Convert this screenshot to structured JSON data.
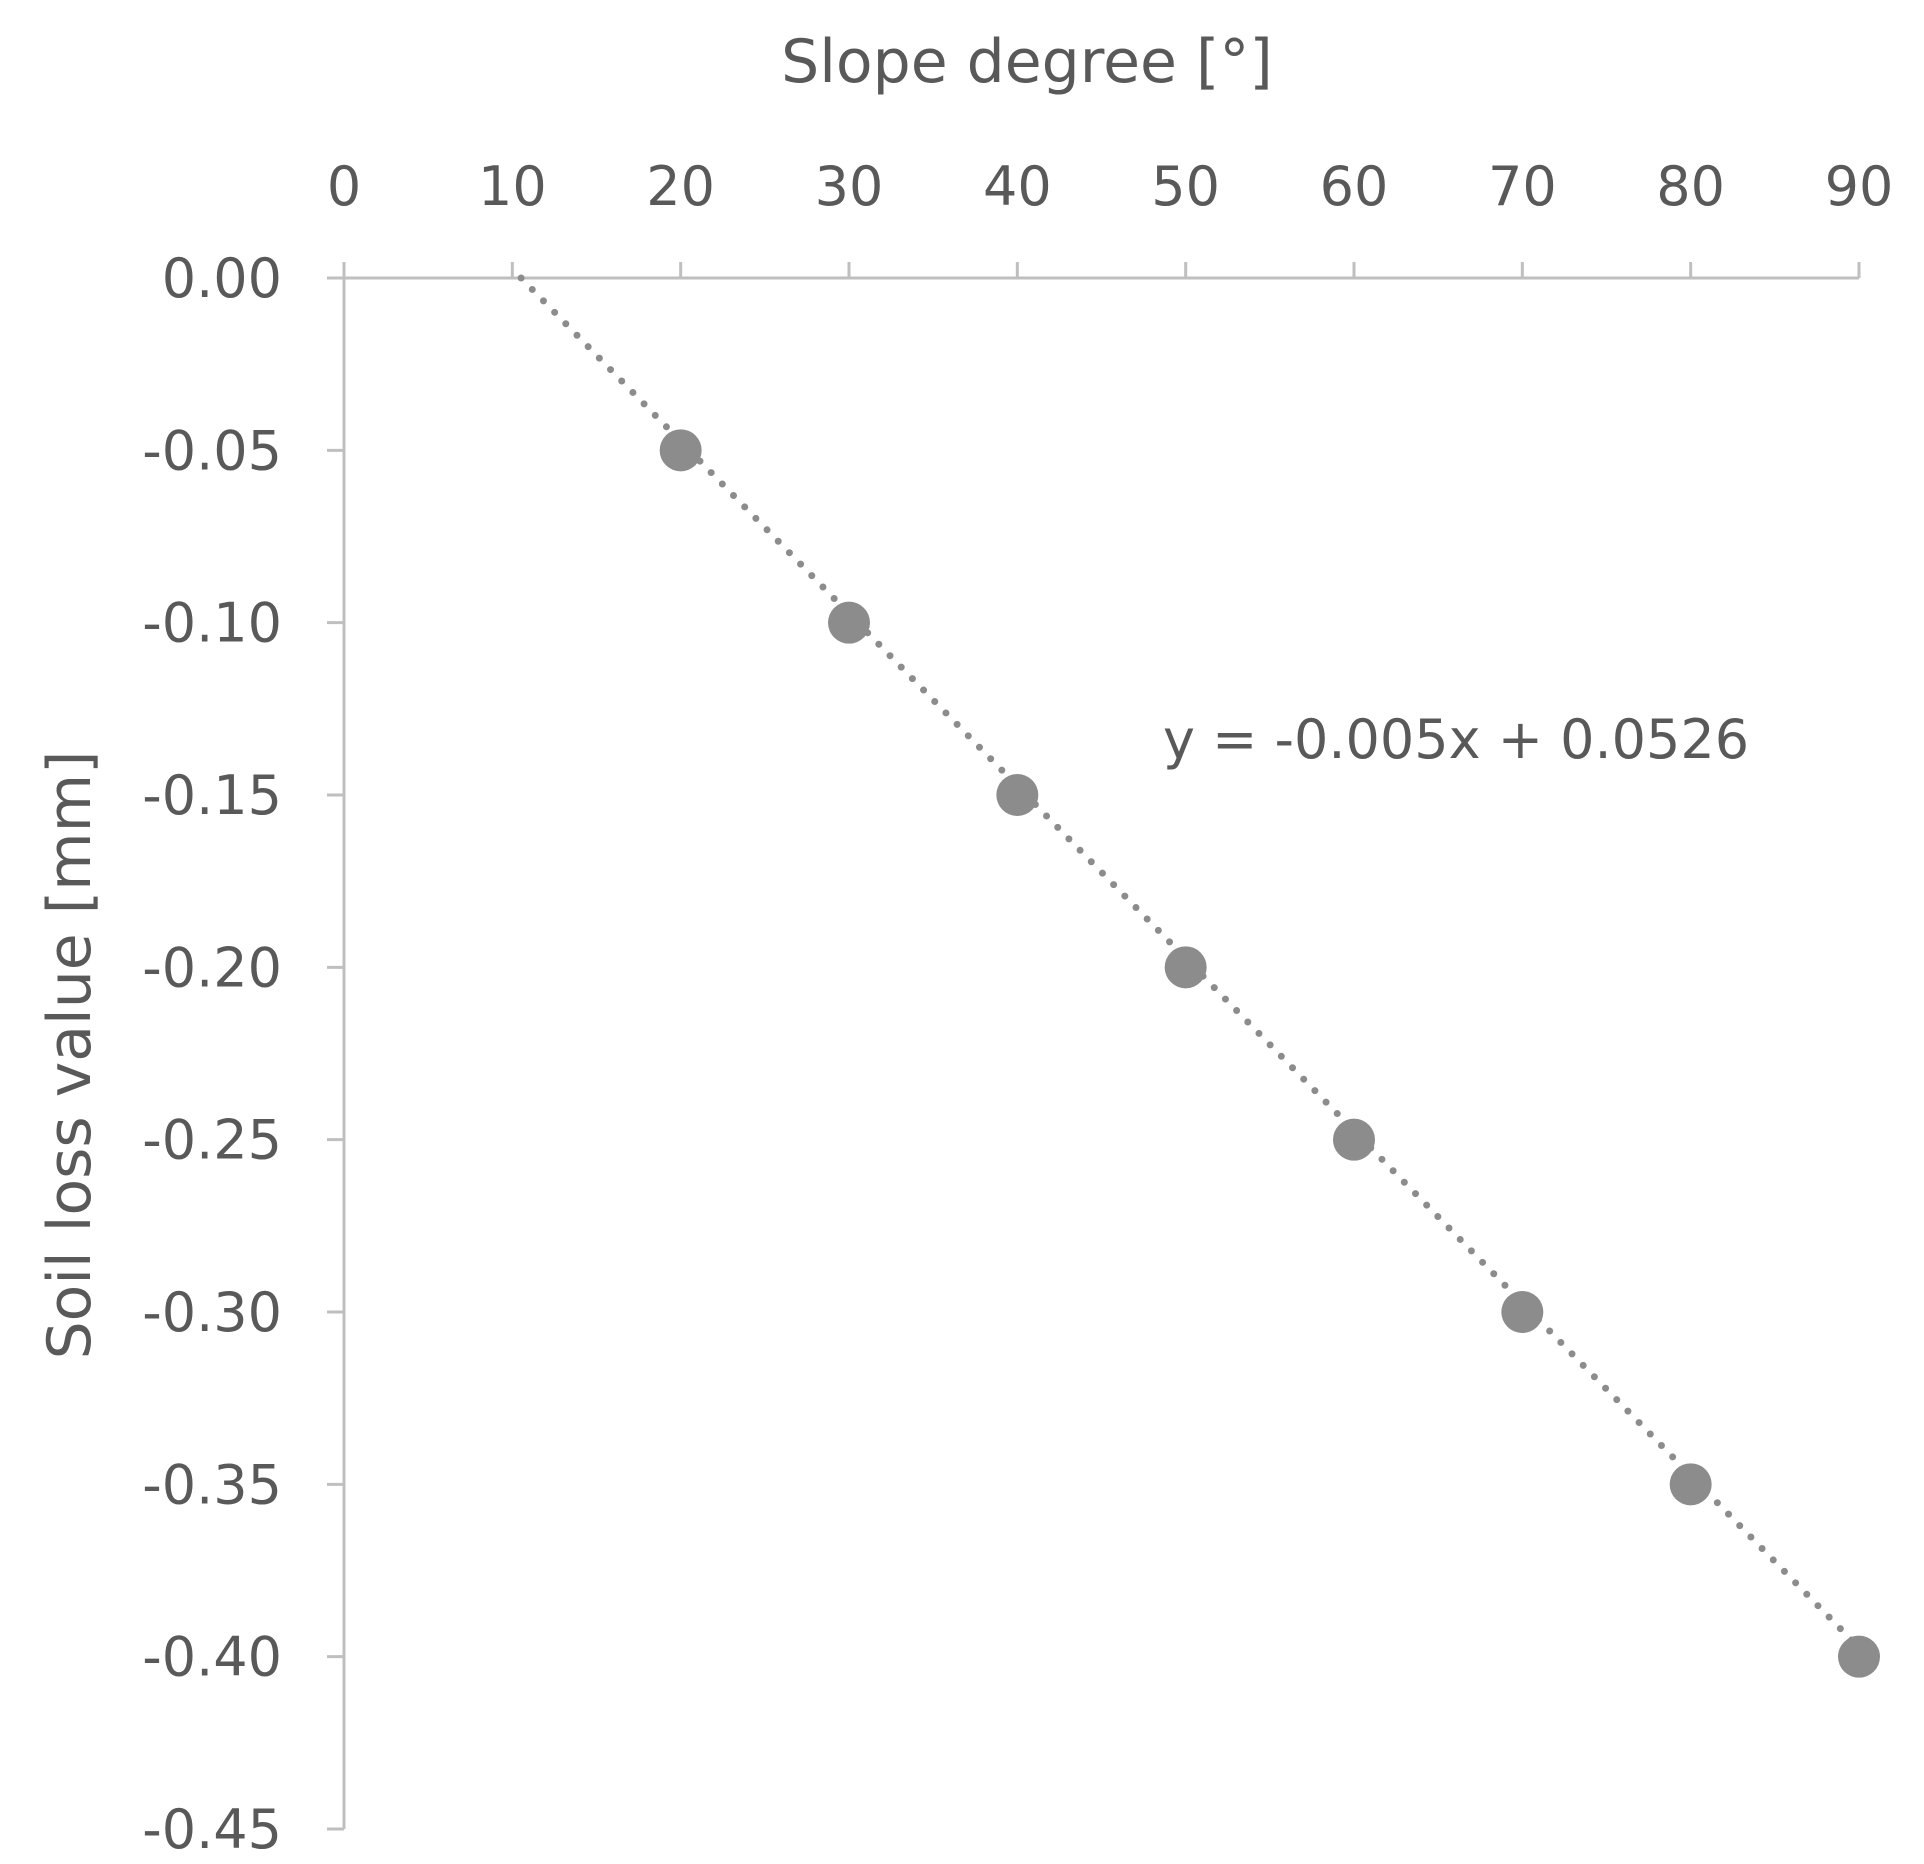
{
  "chart_data": {
    "type": "scatter",
    "title": "",
    "xlabel": "Slope degree [°]",
    "ylabel": "Soil loss value [mm]",
    "xlim": [
      0,
      90
    ],
    "ylim": [
      -0.45,
      0.0
    ],
    "x_ticks": [
      "0",
      "10",
      "20",
      "30",
      "40",
      "50",
      "60",
      "70",
      "80",
      "90"
    ],
    "y_ticks": [
      "0.00",
      "-0.05",
      "-0.10",
      "-0.15",
      "-0.20",
      "-0.25",
      "-0.30",
      "-0.35",
      "-0.40",
      "-0.45"
    ],
    "x_axis_position": "top",
    "grid": false,
    "legend": "none",
    "series": [
      {
        "x": [
          20,
          30,
          40,
          50,
          60,
          70,
          80,
          90
        ],
        "y": [
          -0.05,
          -0.1,
          -0.15,
          -0.2,
          -0.25,
          -0.3,
          -0.35,
          -0.4
        ],
        "color": "#8c8c8c",
        "marker": "circle"
      }
    ],
    "trendline": {
      "type": "linear",
      "slope": -0.005,
      "intercept": 0.0526,
      "style": "dotted",
      "color": "#8c8c8c",
      "equation_label": "y = -0.005x + 0.0526"
    },
    "colors": {
      "axis": "#bfbfbf",
      "text": "#595959",
      "marker": "#8c8c8c"
    }
  }
}
